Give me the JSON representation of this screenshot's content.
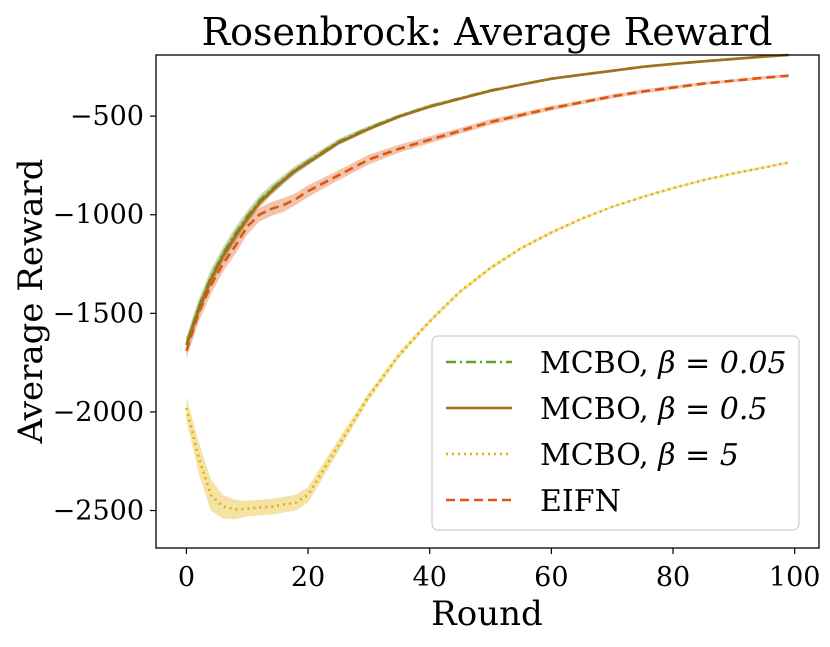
{
  "chart_data": {
    "type": "line",
    "title": "Rosenbrock: Average Reward",
    "xlabel": "Round",
    "ylabel": "Average Reward",
    "xlim": [
      -5,
      104
    ],
    "ylim": [
      -2690,
      -190
    ],
    "xticks": [
      0,
      20,
      40,
      60,
      80,
      100
    ],
    "xtick_labels": [
      "0",
      "20",
      "40",
      "60",
      "80",
      "100"
    ],
    "yticks": [
      -500,
      -1000,
      -1500,
      -2000,
      -2500
    ],
    "ytick_labels": [
      "−500",
      "−1000",
      "−1500",
      "−2000",
      "−2500"
    ],
    "grid": false,
    "legend_position": "lower-right",
    "x": [
      0,
      2,
      4,
      6,
      8,
      10,
      12,
      14,
      16,
      18,
      20,
      25,
      30,
      35,
      40,
      45,
      50,
      55,
      60,
      65,
      70,
      75,
      80,
      85,
      90,
      95,
      99
    ],
    "series": [
      {
        "name": "MCBO, β = 0.05",
        "legend_label": "MCBO, ",
        "legend_math": "β = 0.05",
        "color": "#5ea126",
        "style": "dashdot",
        "values": [
          -1660,
          -1470,
          -1320,
          -1200,
          -1100,
          -1010,
          -930,
          -870,
          -820,
          -770,
          -730,
          -630,
          -560,
          -500,
          -450,
          -410,
          -370,
          -340,
          -310,
          -290,
          -270,
          -250,
          -235,
          -222,
          -210,
          -198,
          -190
        ],
        "band": [
          40,
          40,
          40,
          35,
          35,
          30,
          28,
          25,
          22,
          20,
          18,
          15,
          12,
          10,
          10,
          8,
          8,
          6,
          6,
          5,
          5,
          5,
          5,
          5,
          5,
          5,
          5
        ]
      },
      {
        "name": "MCBO, β = 0.5",
        "legend_label": "MCBO, ",
        "legend_math": "β = 0.5",
        "color": "#a0701c",
        "style": "solid",
        "values": [
          -1660,
          -1480,
          -1330,
          -1210,
          -1110,
          -1020,
          -940,
          -880,
          -825,
          -775,
          -735,
          -635,
          -565,
          -502,
          -452,
          -412,
          -372,
          -340,
          -310,
          -290,
          -270,
          -250,
          -235,
          -222,
          -210,
          -198,
          -190
        ],
        "band": [
          35,
          35,
          30,
          30,
          28,
          25,
          22,
          20,
          18,
          16,
          15,
          12,
          10,
          8,
          8,
          6,
          6,
          5,
          5,
          5,
          4,
          4,
          4,
          4,
          4,
          4,
          4
        ]
      },
      {
        "name": "MCBO, β = 5",
        "legend_label": "MCBO, ",
        "legend_math": "β = 5",
        "color": "#e2b000",
        "style": "dotted",
        "values": [
          -1980,
          -2230,
          -2420,
          -2480,
          -2495,
          -2490,
          -2485,
          -2480,
          -2470,
          -2460,
          -2420,
          -2170,
          -1920,
          -1710,
          -1540,
          -1390,
          -1270,
          -1170,
          -1090,
          -1020,
          -960,
          -910,
          -865,
          -825,
          -790,
          -760,
          -735
        ],
        "band": [
          60,
          80,
          80,
          60,
          50,
          40,
          40,
          40,
          40,
          40,
          40,
          30,
          20,
          15,
          12,
          10,
          10,
          8,
          8,
          6,
          6,
          6,
          6,
          6,
          6,
          6,
          6
        ]
      },
      {
        "name": "EIFN",
        "legend_label": "EIFN",
        "legend_math": "",
        "color": "#dd5711",
        "style": "dashed",
        "values": [
          -1690,
          -1500,
          -1360,
          -1250,
          -1160,
          -1060,
          -1000,
          -970,
          -950,
          -920,
          -880,
          -800,
          -720,
          -665,
          -620,
          -575,
          -530,
          -495,
          -460,
          -430,
          -400,
          -375,
          -355,
          -335,
          -320,
          -305,
          -295
        ],
        "band": [
          40,
          45,
          45,
          40,
          40,
          40,
          35,
          35,
          35,
          30,
          30,
          25,
          25,
          20,
          18,
          15,
          15,
          12,
          12,
          10,
          10,
          10,
          10,
          8,
          8,
          8,
          8
        ]
      }
    ]
  }
}
